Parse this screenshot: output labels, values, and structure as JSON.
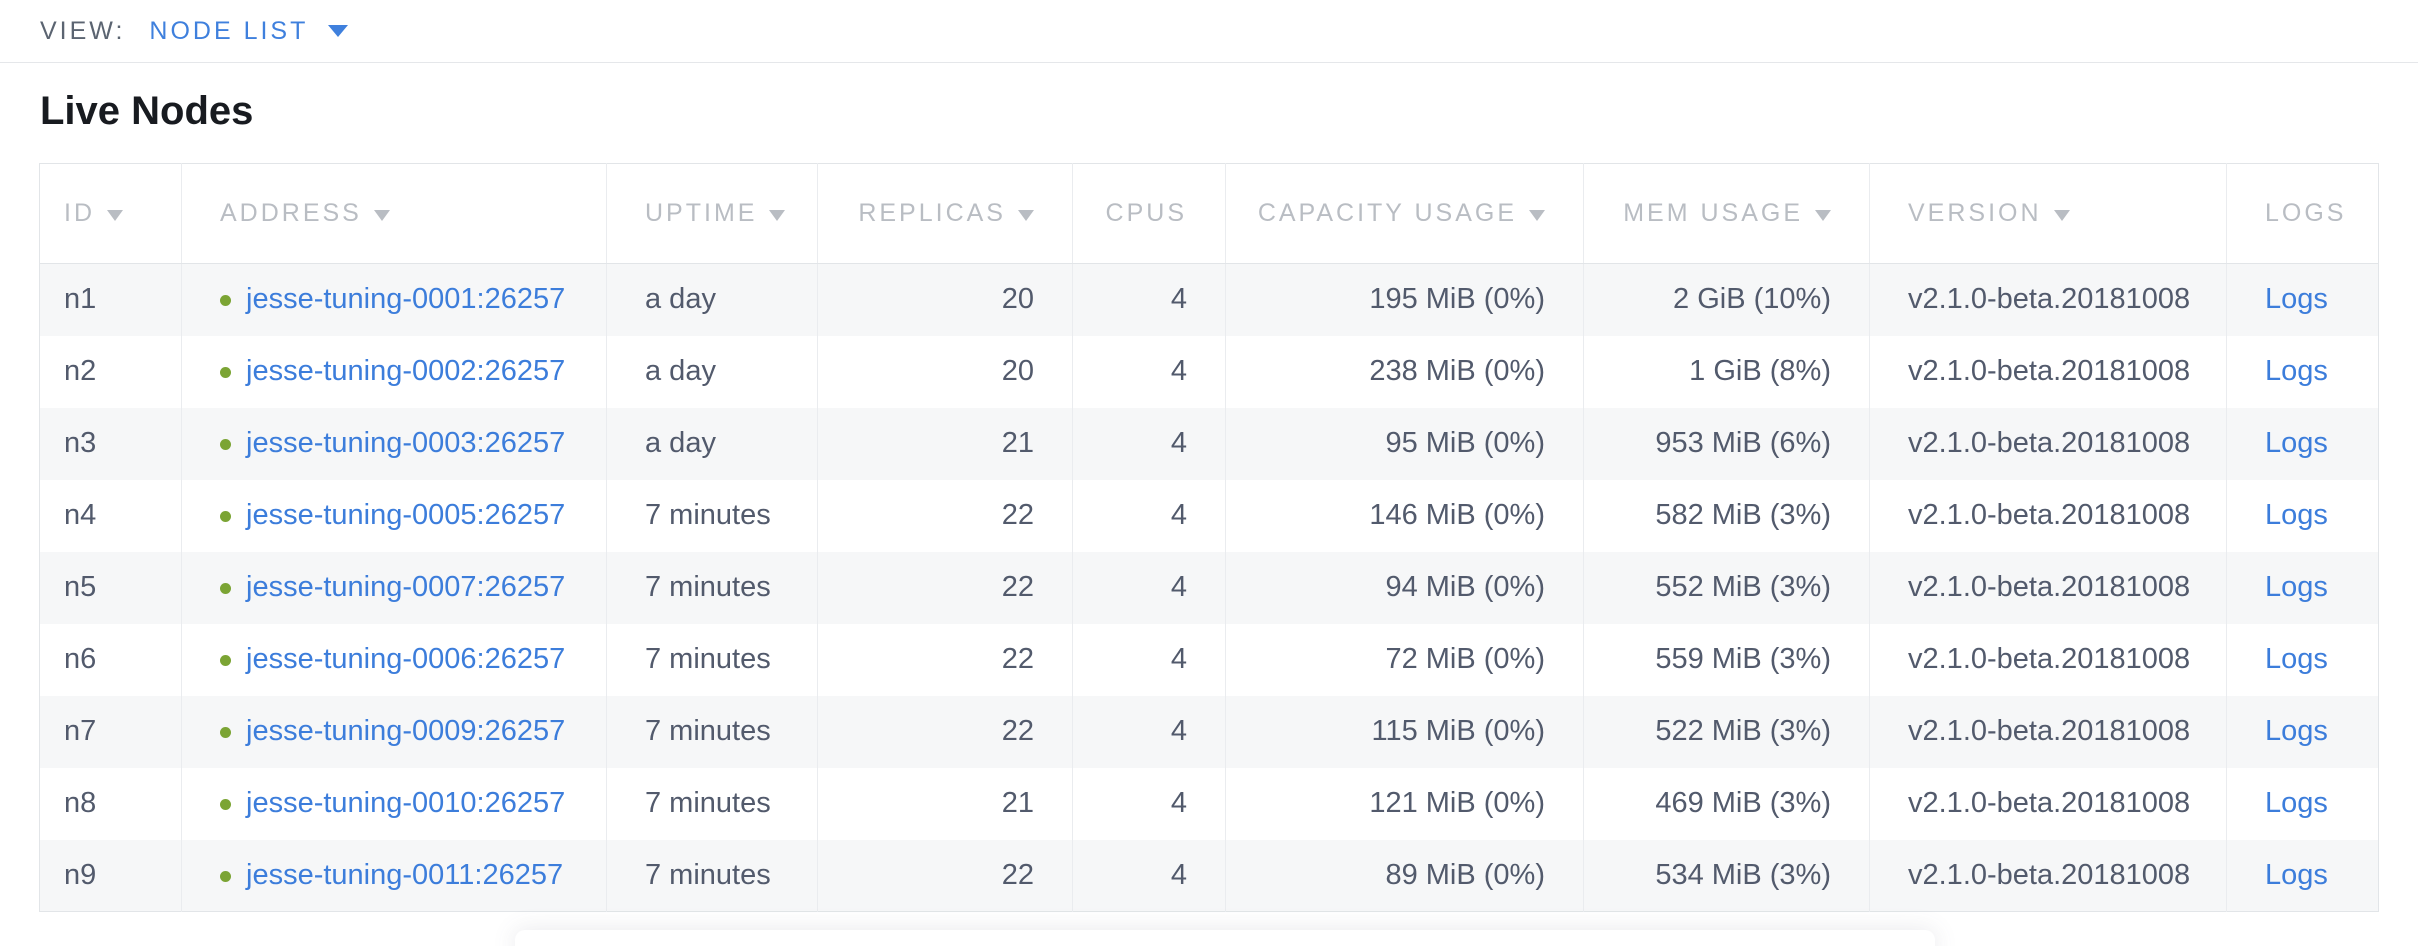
{
  "view_bar": {
    "label": "VIEW:",
    "selected": "NODE LIST"
  },
  "page": {
    "title": "Live Nodes"
  },
  "table": {
    "columns": [
      {
        "key": "id",
        "label": "ID",
        "sortable": true,
        "align": "left"
      },
      {
        "key": "address",
        "label": "ADDRESS",
        "sortable": true,
        "align": "left"
      },
      {
        "key": "uptime",
        "label": "UPTIME",
        "sortable": true,
        "align": "left"
      },
      {
        "key": "replicas",
        "label": "REPLICAS",
        "sortable": true,
        "align": "right"
      },
      {
        "key": "cpus",
        "label": "CPUS",
        "sortable": false,
        "align": "right"
      },
      {
        "key": "capacity",
        "label": "CAPACITY USAGE",
        "sortable": true,
        "align": "right"
      },
      {
        "key": "mem",
        "label": "MEM USAGE",
        "sortable": true,
        "align": "right"
      },
      {
        "key": "version",
        "label": "VERSION",
        "sortable": true,
        "align": "left"
      },
      {
        "key": "logs",
        "label": "LOGS",
        "sortable": false,
        "align": "left"
      }
    ],
    "rows": [
      {
        "id": "n1",
        "address": "jesse-tuning-0001:26257",
        "status": "healthy",
        "uptime": "a day",
        "replicas": "20",
        "cpus": "4",
        "capacity": "195 MiB (0%)",
        "mem": "2 GiB (10%)",
        "version": "v2.1.0-beta.20181008",
        "logs": "Logs"
      },
      {
        "id": "n2",
        "address": "jesse-tuning-0002:26257",
        "status": "healthy",
        "uptime": "a day",
        "replicas": "20",
        "cpus": "4",
        "capacity": "238 MiB (0%)",
        "mem": "1 GiB (8%)",
        "version": "v2.1.0-beta.20181008",
        "logs": "Logs"
      },
      {
        "id": "n3",
        "address": "jesse-tuning-0003:26257",
        "status": "healthy",
        "uptime": "a day",
        "replicas": "21",
        "cpus": "4",
        "capacity": "95 MiB (0%)",
        "mem": "953 MiB (6%)",
        "version": "v2.1.0-beta.20181008",
        "logs": "Logs"
      },
      {
        "id": "n4",
        "address": "jesse-tuning-0005:26257",
        "status": "healthy",
        "uptime": "7 minutes",
        "replicas": "22",
        "cpus": "4",
        "capacity": "146 MiB (0%)",
        "mem": "582 MiB (3%)",
        "version": "v2.1.0-beta.20181008",
        "logs": "Logs"
      },
      {
        "id": "n5",
        "address": "jesse-tuning-0007:26257",
        "status": "healthy",
        "uptime": "7 minutes",
        "replicas": "22",
        "cpus": "4",
        "capacity": "94 MiB (0%)",
        "mem": "552 MiB (3%)",
        "version": "v2.1.0-beta.20181008",
        "logs": "Logs"
      },
      {
        "id": "n6",
        "address": "jesse-tuning-0006:26257",
        "status": "healthy",
        "uptime": "7 minutes",
        "replicas": "22",
        "cpus": "4",
        "capacity": "72 MiB (0%)",
        "mem": "559 MiB (3%)",
        "version": "v2.1.0-beta.20181008",
        "logs": "Logs"
      },
      {
        "id": "n7",
        "address": "jesse-tuning-0009:26257",
        "status": "healthy",
        "uptime": "7 minutes",
        "replicas": "22",
        "cpus": "4",
        "capacity": "115 MiB (0%)",
        "mem": "522 MiB (3%)",
        "version": "v2.1.0-beta.20181008",
        "logs": "Logs"
      },
      {
        "id": "n8",
        "address": "jesse-tuning-0010:26257",
        "status": "healthy",
        "uptime": "7 minutes",
        "replicas": "21",
        "cpus": "4",
        "capacity": "121 MiB (0%)",
        "mem": "469 MiB (3%)",
        "version": "v2.1.0-beta.20181008",
        "logs": "Logs"
      },
      {
        "id": "n9",
        "address": "jesse-tuning-0011:26257",
        "status": "healthy",
        "uptime": "7 minutes",
        "replicas": "22",
        "cpus": "4",
        "capacity": "89 MiB (0%)",
        "mem": "534 MiB (3%)",
        "version": "v2.1.0-beta.20181008",
        "logs": "Logs"
      }
    ]
  },
  "colors": {
    "accent_blue": "#3c7ddb",
    "healthy_green": "#7ba434",
    "header_gray": "#b9bdc3",
    "cell_text": "#525a6c",
    "alt_row_bg": "#f6f7f8",
    "border": "#e2e5e8"
  }
}
